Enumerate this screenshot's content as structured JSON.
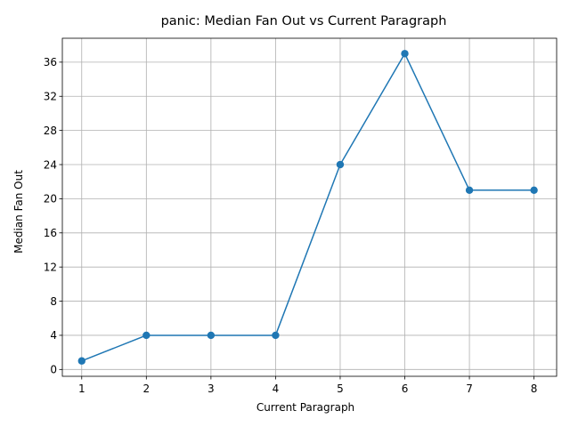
{
  "chart_data": {
    "type": "line",
    "title": "panic: Median Fan Out vs Current Paragraph",
    "xlabel": "Current Paragraph",
    "ylabel": "Median Fan Out",
    "x": [
      1,
      2,
      3,
      4,
      5,
      6,
      7,
      8
    ],
    "series": [
      {
        "values": [
          1,
          4,
          4,
          4,
          24,
          37,
          21,
          21
        ],
        "color": "#1f77b4",
        "marker": "circle"
      }
    ],
    "xlim": [
      0.7,
      8.35
    ],
    "ylim": [
      -0.8,
      38.8
    ],
    "xticks": [
      1,
      2,
      3,
      4,
      5,
      6,
      7,
      8
    ],
    "yticks": [
      0,
      4,
      8,
      12,
      16,
      20,
      24,
      28,
      32,
      36
    ],
    "grid": true,
    "legend": "none"
  }
}
